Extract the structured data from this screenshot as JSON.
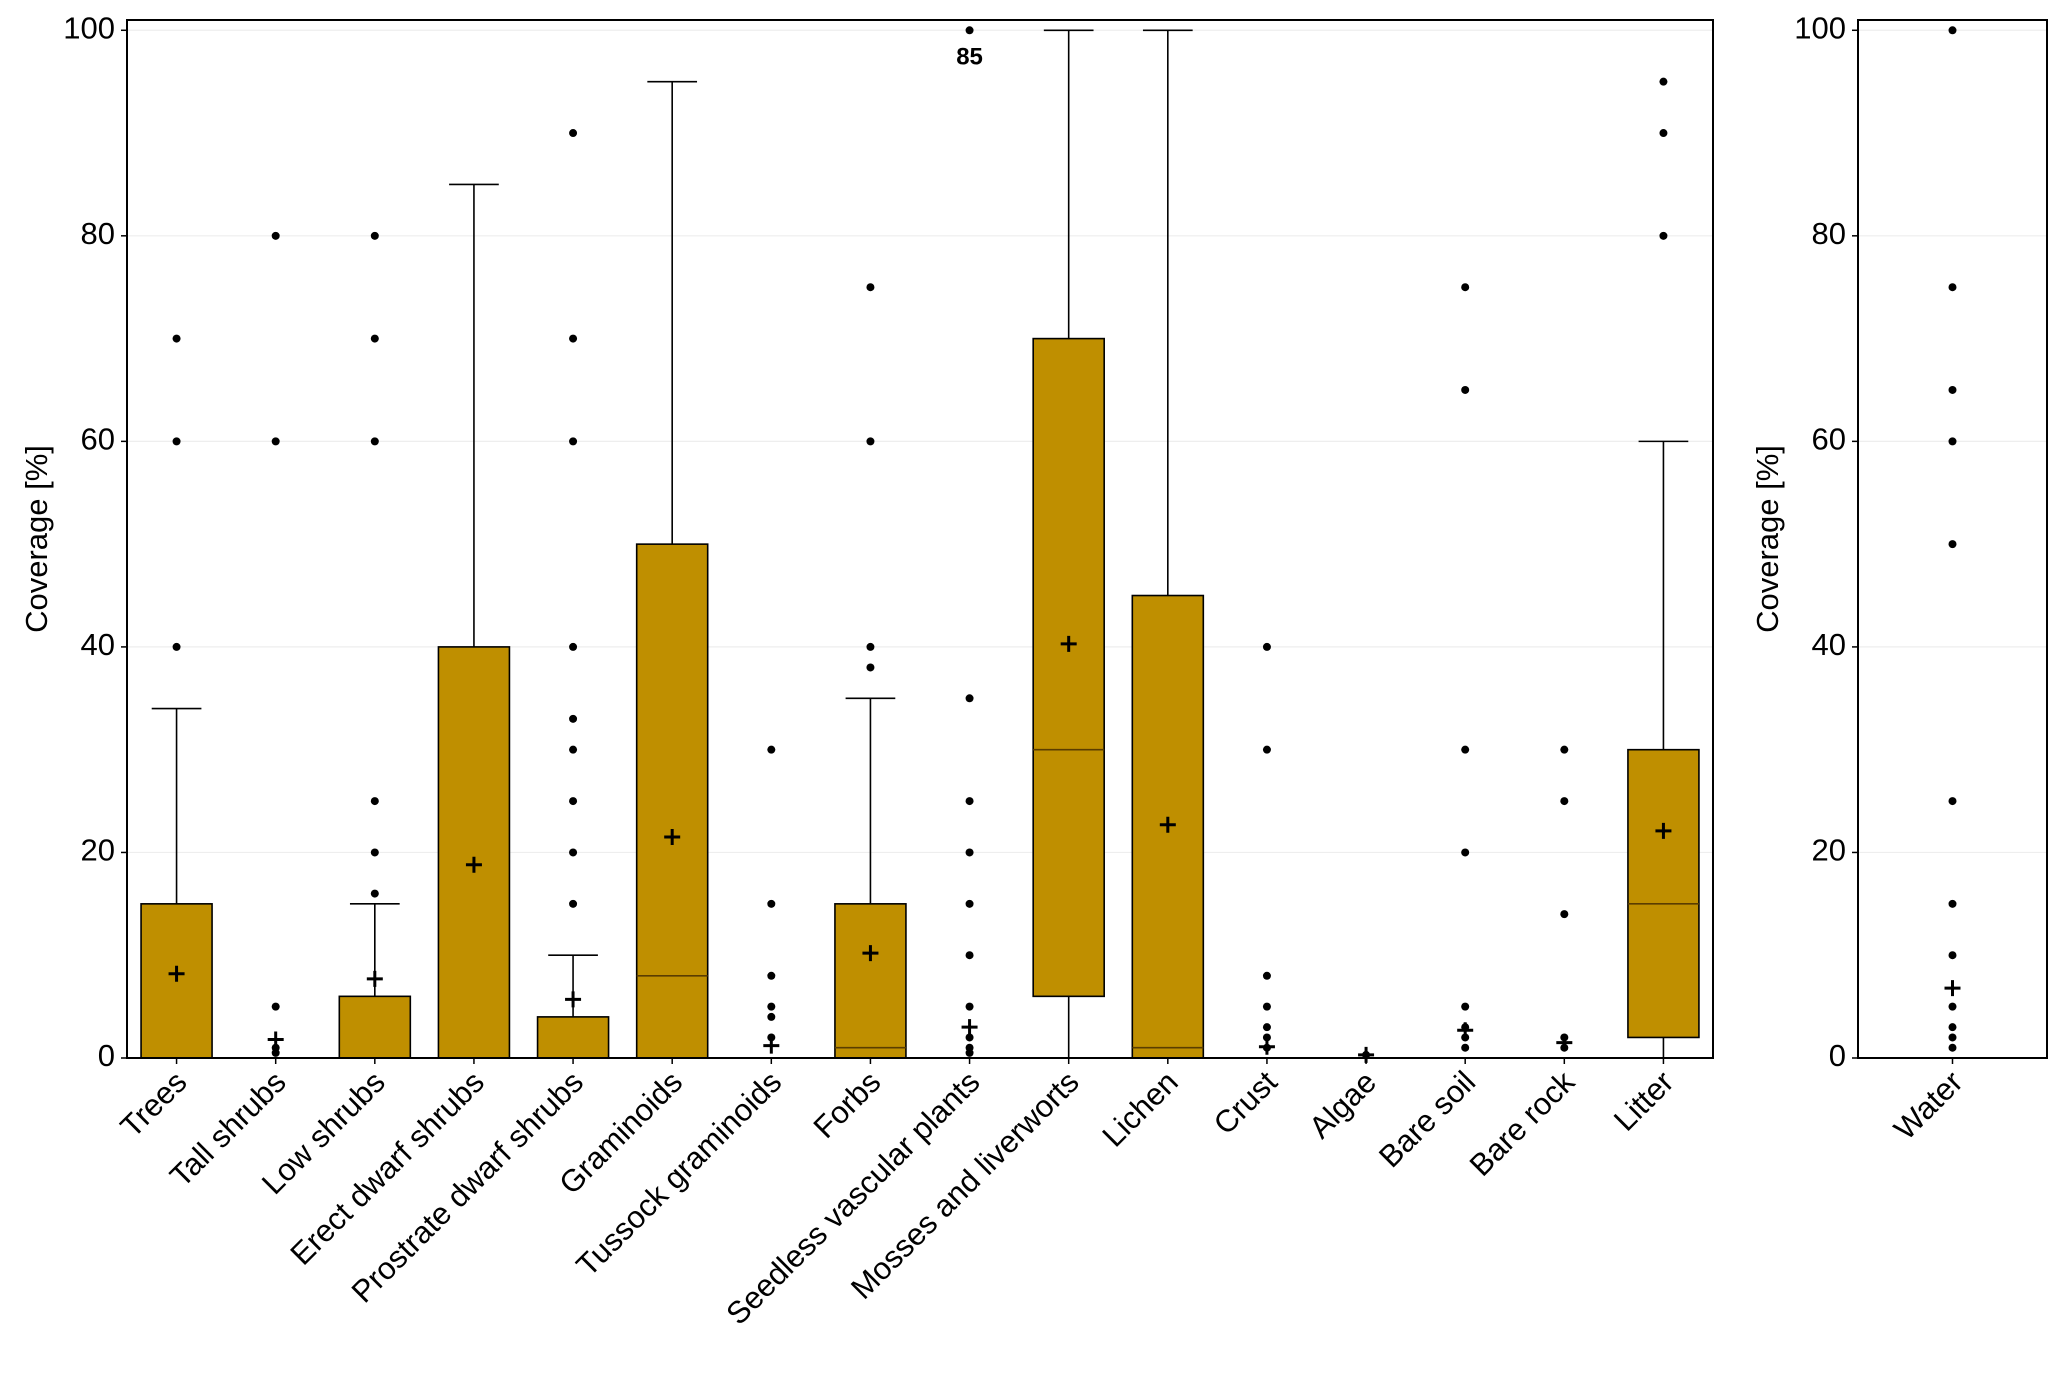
{
  "chart_data": [
    {
      "type": "box",
      "ylabel": "Coverage [%]",
      "color": "#bf8f00",
      "grid": true,
      "ylim": [
        0,
        101
      ],
      "yticks": [
        0,
        20,
        40,
        60,
        80,
        100
      ],
      "categories": [
        "Trees",
        "Tall shrubs",
        "Low shrubs",
        "Erect dwarf shrubs",
        "Prostrate dwarf shrubs",
        "Graminoids",
        "Tussock graminoids",
        "Forbs",
        "Seedless vascular plants",
        "Mosses and liverworts",
        "Lichen",
        "Crust",
        "Algae",
        "Bare soil",
        "Bare rock",
        "Litter"
      ],
      "boxes": [
        {
          "min": 0,
          "q1": 0,
          "median": 0,
          "q3": 15,
          "max": 34,
          "mean": 8.2,
          "outliers": [
            40,
            60,
            70
          ]
        },
        {
          "min": 0,
          "q1": 0,
          "median": 0,
          "q3": 0,
          "max": 0,
          "mean": 1.8,
          "outliers": [
            0.5,
            1,
            5,
            60,
            80
          ]
        },
        {
          "min": 0,
          "q1": 0,
          "median": 0,
          "q3": 6,
          "max": 15,
          "mean": 7.7,
          "outliers": [
            16,
            20,
            25,
            60,
            70,
            80
          ]
        },
        {
          "min": 0,
          "q1": 0,
          "median": 0,
          "q3": 40,
          "max": 85,
          "mean": 18.8,
          "outliers": []
        },
        {
          "min": 0,
          "q1": 0,
          "median": 0,
          "q3": 4,
          "max": 10,
          "mean": 5.7,
          "outliers": [
            15,
            20,
            25,
            30,
            33,
            40,
            60,
            70,
            90
          ]
        },
        {
          "min": 0,
          "q1": 0,
          "median": 8,
          "q3": 50,
          "max": 95,
          "mean": 21.5,
          "outliers": []
        },
        {
          "min": 0,
          "q1": 0,
          "median": 0,
          "q3": 0,
          "max": 0,
          "mean": 1.2,
          "outliers": [
            2,
            4,
            5,
            8,
            15,
            30
          ]
        },
        {
          "min": 0,
          "q1": 0,
          "median": 1,
          "q3": 15,
          "max": 35,
          "mean": 10.2,
          "outliers": [
            38,
            40,
            60,
            75
          ]
        },
        {
          "min": 0,
          "q1": 0,
          "median": 0,
          "q3": 0,
          "max": 0,
          "mean": 3,
          "outliers": [
            0.5,
            1,
            2,
            5,
            10,
            15,
            20,
            25,
            35,
            100
          ],
          "note": "85"
        },
        {
          "min": 0,
          "q1": 6,
          "median": 30,
          "q3": 70,
          "max": 100,
          "mean": 40.3,
          "outliers": []
        },
        {
          "min": 0,
          "q1": 0,
          "median": 1,
          "q3": 45,
          "max": 100,
          "mean": 22.7,
          "outliers": []
        },
        {
          "min": 0,
          "q1": 0,
          "median": 0,
          "q3": 0,
          "max": 0,
          "mean": 1.1,
          "outliers": [
            1,
            2,
            3,
            5,
            8,
            30,
            40
          ]
        },
        {
          "min": 0,
          "q1": 0,
          "median": 0,
          "q3": 0,
          "max": 0,
          "mean": 0.3,
          "outliers": [
            0.3
          ]
        },
        {
          "min": 0,
          "q1": 0,
          "median": 0,
          "q3": 0,
          "max": 0,
          "mean": 2.7,
          "outliers": [
            1,
            2,
            3,
            5,
            20,
            30,
            65,
            75
          ]
        },
        {
          "min": 0,
          "q1": 0,
          "median": 0,
          "q3": 0,
          "max": 0,
          "mean": 1.5,
          "outliers": [
            1,
            2,
            14,
            25,
            30
          ]
        },
        {
          "min": 0,
          "q1": 2,
          "median": 15,
          "q3": 30,
          "max": 60,
          "mean": 22.1,
          "outliers": [
            80,
            90,
            95
          ]
        }
      ]
    },
    {
      "type": "box",
      "ylabel": "Coverage [%]",
      "color": "#bf8f00",
      "grid": true,
      "ylim": [
        0,
        101
      ],
      "yticks": [
        0,
        20,
        40,
        60,
        80,
        100
      ],
      "categories": [
        "Water"
      ],
      "boxes": [
        {
          "min": 0,
          "q1": 0,
          "median": 0,
          "q3": 0,
          "max": 0,
          "mean": 6.8,
          "outliers": [
            1,
            2,
            3,
            5,
            10,
            15,
            25,
            50,
            60,
            65,
            75,
            100
          ]
        }
      ]
    }
  ]
}
